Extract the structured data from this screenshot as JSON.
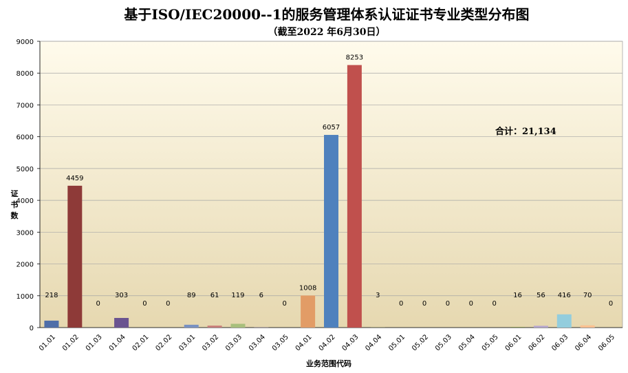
{
  "chart_data": {
    "type": "bar",
    "title": "基于ISO/IEC20000--1的服务管理体系认证证书专业类型分布图",
    "subtitle": "（截至2022 年6月30日）",
    "xlabel": "业务范围代码",
    "ylabel": "证书数",
    "ylim": [
      0,
      9000
    ],
    "yticks": [
      0,
      1000,
      2000,
      3000,
      4000,
      5000,
      6000,
      7000,
      8000,
      9000
    ],
    "grid": true,
    "annotation": "合计：21,134",
    "categories": [
      "01.01",
      "01.02",
      "01.03",
      "01.04",
      "02.01",
      "02.02",
      "03.01",
      "03.02",
      "03.03",
      "03.04",
      "03.05",
      "04.01",
      "04.02",
      "04.03",
      "04.04",
      "05.01",
      "05.02",
      "05.03",
      "05.04",
      "05.05",
      "06.01",
      "06.02",
      "06.03",
      "06.04",
      "06.05"
    ],
    "values": [
      218,
      4459,
      0,
      303,
      0,
      0,
      89,
      61,
      119,
      6,
      0,
      1008,
      6057,
      8253,
      3,
      0,
      0,
      0,
      0,
      0,
      16,
      56,
      416,
      70,
      0
    ],
    "colors": [
      "#4F6EA8",
      "#8E3A38",
      "#7A9244",
      "#6A5390",
      "#3F98AE",
      "#D27C35",
      "#7891C2",
      "#C77C79",
      "#A8BF7C",
      "#9C8DB8",
      "#7BB7CA",
      "#E29C66",
      "#4F81BD",
      "#C0504D",
      "#9BBB59",
      "#8064A2",
      "#4BACC6",
      "#F79646",
      "#2C4D75",
      "#772C2A",
      "#5F7530",
      "#B5A6CF",
      "#93CDDD",
      "#FAC090",
      "#3D6AA2"
    ]
  }
}
